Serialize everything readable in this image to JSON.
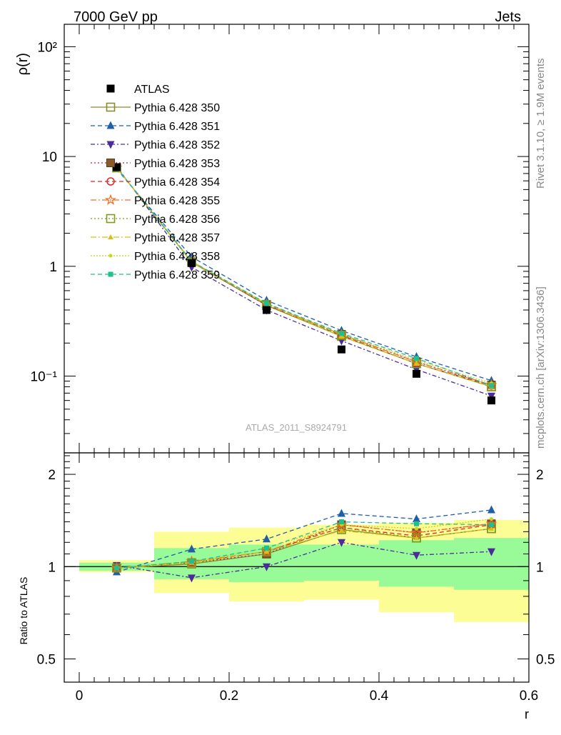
{
  "header": {
    "left": "7000 GeV pp",
    "right": "Jets"
  },
  "side_labels": {
    "rivet": "Rivet 3.1.10, ≥ 1.9M events",
    "mcplots": "mcplots.cern.ch [arXiv:1306.3436]"
  },
  "watermark": "ATLAS_2011_S8924791",
  "chart_data": [
    {
      "type": "scatter",
      "panel": "main",
      "ylabel": "ρ(r)",
      "yscale": "log",
      "ylim": [
        0.02,
        160
      ],
      "xlim": [
        -0.02,
        0.6
      ],
      "ytick_labels": {
        "0.1": "10⁻¹",
        "1": "1",
        "10": "10",
        "100": "10²"
      },
      "x": [
        0.05,
        0.15,
        0.25,
        0.35,
        0.45,
        0.55
      ],
      "series": [
        {
          "name": "ATLAS",
          "color": "#000000",
          "marker": "square-filled",
          "dash": "none",
          "values": [
            8.0,
            1.07,
            0.4,
            0.175,
            0.105,
            0.06
          ]
        },
        {
          "name": "Pythia 6.428 350",
          "color": "#8b8b2b",
          "marker": "square-open",
          "dash": "solid",
          "values": [
            7.9,
            1.09,
            0.44,
            0.23,
            0.13,
            0.08
          ]
        },
        {
          "name": "Pythia 6.428 351",
          "color": "#1f5fa8",
          "marker": "triangle-up",
          "dash": "6,4",
          "values": [
            7.7,
            1.22,
            0.49,
            0.26,
            0.15,
            0.091
          ]
        },
        {
          "name": "Pythia 6.428 352",
          "color": "#4b2c9c",
          "marker": "triangle-down",
          "dash": "6,3,2,3",
          "values": [
            8.1,
            0.98,
            0.4,
            0.21,
            0.115,
            0.066
          ]
        },
        {
          "name": "Pythia 6.428 353",
          "color": "#c2185b",
          "marker": "square-fill-brown",
          "dash": "2,3",
          "values": [
            7.9,
            1.1,
            0.44,
            0.24,
            0.135,
            0.083
          ]
        },
        {
          "name": "Pythia 6.428 354",
          "color": "#e0262b",
          "marker": "circle-open",
          "dash": "6,4",
          "values": [
            7.9,
            1.1,
            0.45,
            0.235,
            0.13,
            0.082
          ]
        },
        {
          "name": "Pythia 6.428 355",
          "color": "#f07020",
          "marker": "star-open",
          "dash": "8,3,2,3",
          "values": [
            7.9,
            1.11,
            0.45,
            0.24,
            0.135,
            0.083
          ]
        },
        {
          "name": "Pythia 6.428 356",
          "color": "#7d9b1c",
          "marker": "square-open",
          "dash": "2,3",
          "values": [
            7.9,
            1.1,
            0.45,
            0.235,
            0.13,
            0.08
          ]
        },
        {
          "name": "Pythia 6.428 357",
          "color": "#d4c21a",
          "marker": "tri-small",
          "dash": "8,3,2,3",
          "values": [
            7.9,
            1.1,
            0.45,
            0.23,
            0.13,
            0.08
          ]
        },
        {
          "name": "Pythia 6.428 358",
          "color": "#c8d41f",
          "marker": "dot",
          "dash": "2,2",
          "values": [
            7.9,
            1.1,
            0.46,
            0.24,
            0.14,
            0.086
          ]
        },
        {
          "name": "Pythia 6.428 359",
          "color": "#1fbf8f",
          "marker": "square-small",
          "dash": "6,4",
          "values": [
            7.9,
            1.11,
            0.46,
            0.245,
            0.145,
            0.082
          ]
        }
      ]
    },
    {
      "type": "scatter",
      "panel": "ratio",
      "ylabel": "Ratio to ATLAS",
      "xlabel": "r",
      "yscale": "log",
      "ylim": [
        0.42,
        2.35
      ],
      "xlim": [
        -0.02,
        0.6
      ],
      "yticks": [
        0.5,
        1,
        2
      ],
      "xticks": [
        0,
        0.2,
        0.4,
        0.6
      ],
      "bands": {
        "x_edges": [
          0.0,
          0.1,
          0.2,
          0.3,
          0.4,
          0.5,
          0.6
        ],
        "green": [
          [
            0.97,
            1.03
          ],
          [
            0.91,
            1.15
          ],
          [
            0.89,
            1.18
          ],
          [
            0.9,
            1.18
          ],
          [
            0.86,
            1.22
          ],
          [
            0.84,
            1.24
          ]
        ],
        "yellow": [
          [
            0.96,
            1.05
          ],
          [
            0.82,
            1.3
          ],
          [
            0.77,
            1.34
          ],
          [
            0.78,
            1.37
          ],
          [
            0.71,
            1.39
          ],
          [
            0.66,
            1.42
          ]
        ]
      },
      "x": [
        0.05,
        0.15,
        0.25,
        0.35,
        0.45,
        0.55
      ],
      "series": [
        {
          "name": "Pythia 6.428 350",
          "values": [
            0.99,
            1.02,
            1.1,
            1.32,
            1.24,
            1.33
          ]
        },
        {
          "name": "Pythia 6.428 351",
          "values": [
            0.96,
            1.14,
            1.23,
            1.49,
            1.43,
            1.53
          ]
        },
        {
          "name": "Pythia 6.428 352",
          "values": [
            1.01,
            0.92,
            1.0,
            1.2,
            1.09,
            1.12
          ]
        },
        {
          "name": "Pythia 6.428 353",
          "values": [
            0.99,
            1.03,
            1.1,
            1.37,
            1.29,
            1.38
          ]
        },
        {
          "name": "Pythia 6.428 354",
          "values": [
            0.99,
            1.03,
            1.12,
            1.34,
            1.26,
            1.37
          ]
        },
        {
          "name": "Pythia 6.428 355",
          "values": [
            0.99,
            1.04,
            1.12,
            1.37,
            1.29,
            1.38
          ]
        },
        {
          "name": "Pythia 6.428 356",
          "values": [
            0.99,
            1.03,
            1.12,
            1.34,
            1.24,
            1.33
          ]
        },
        {
          "name": "Pythia 6.428 357",
          "values": [
            0.99,
            1.03,
            1.12,
            1.31,
            1.24,
            1.33
          ]
        },
        {
          "name": "Pythia 6.428 358",
          "values": [
            0.99,
            1.03,
            1.15,
            1.37,
            1.33,
            1.43
          ]
        },
        {
          "name": "Pythia 6.428 359",
          "values": [
            0.99,
            1.04,
            1.15,
            1.4,
            1.38,
            1.37
          ]
        }
      ]
    }
  ]
}
